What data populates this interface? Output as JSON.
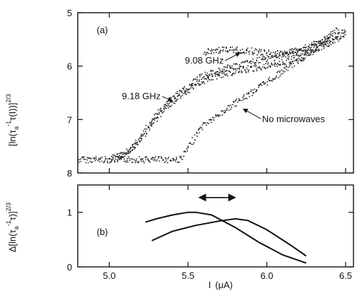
{
  "chart_data": [
    {
      "type": "scatter",
      "panel": "(a)",
      "ylabel_base": "[ln(τ",
      "ylabel_sub": "a",
      "ylabel_sup1": "-1",
      "ylabel_mid": "τ(I))]",
      "ylabel_sup2": "2/3",
      "y_inverted": true,
      "xlim": [
        4.8,
        6.55
      ],
      "ylim": [
        5,
        8
      ],
      "yticks": [
        "5",
        "6",
        "7",
        "8"
      ],
      "series": [
        {
          "name": "No microwaves",
          "segments": [
            {
              "x": [
                4.8,
                5.45,
                5.5,
                5.55,
                5.6,
                5.68,
                5.75,
                5.85,
                5.95,
                6.05,
                6.15,
                6.25,
                6.35,
                6.42,
                6.5
              ],
              "y": [
                7.75,
                7.75,
                7.55,
                7.3,
                7.1,
                6.95,
                6.8,
                6.6,
                6.4,
                6.2,
                6.0,
                5.8,
                5.62,
                5.45,
                5.35
              ]
            }
          ]
        },
        {
          "name": "9.08 GHz",
          "segments": [
            {
              "x": [
                5.05,
                5.18,
                5.25,
                5.32,
                5.4,
                5.5,
                5.58,
                5.68,
                5.8,
                5.95,
                6.1,
                6.25,
                6.4
              ],
              "y": [
                7.75,
                7.45,
                7.1,
                6.85,
                6.6,
                6.4,
                6.2,
                6.1,
                6.0,
                5.9,
                5.8,
                5.7,
                5.5
              ]
            },
            {
              "x": [
                5.6,
                5.7,
                5.8,
                5.9,
                6.0,
                6.1,
                6.2,
                6.3,
                6.4,
                6.45
              ],
              "y": [
                5.75,
                5.7,
                5.7,
                5.72,
                5.75,
                5.78,
                5.7,
                5.6,
                5.45,
                5.3
              ]
            }
          ]
        },
        {
          "name": "9.18 GHz",
          "segments": [
            {
              "x": [
                5.0,
                5.12,
                5.2,
                5.28,
                5.35,
                5.45,
                5.55,
                5.65,
                5.8,
                6.0,
                6.2,
                6.35,
                6.5
              ],
              "y": [
                7.75,
                7.6,
                7.35,
                7.05,
                6.8,
                6.55,
                6.35,
                6.2,
                6.1,
                6.0,
                5.85,
                5.65,
                5.4
              ]
            }
          ]
        }
      ],
      "annotations": [
        {
          "text": "9.08 GHz",
          "label_x": 5.48,
          "label_y": 5.95,
          "arrow_to": [
            5.83,
            5.75
          ]
        },
        {
          "text": "9.18 GHz",
          "label_x": 5.08,
          "label_y": 6.62,
          "arrow_to": [
            5.4,
            6.65
          ]
        },
        {
          "text": "No microwaves",
          "label_x": 5.97,
          "label_y": 7.05,
          "arrow_to": [
            5.85,
            6.8
          ]
        }
      ]
    },
    {
      "type": "line",
      "panel": "(b)",
      "ylabel_delta": "Δ",
      "ylabel_base": "[ln(τ",
      "ylabel_sub": "a",
      "ylabel_sup1": "-1",
      "ylabel_mid": "τ)]",
      "ylabel_sup2": "2/3",
      "xlabel_base": "I",
      "xlabel_unit": "(μA)",
      "xlim": [
        4.8,
        6.55
      ],
      "ylim": [
        0,
        1.5
      ],
      "xticks": [
        "5.0",
        "5.5",
        "6.0",
        "6.5"
      ],
      "yticks": [
        "0",
        "1"
      ],
      "series": [
        {
          "x": [
            5.23,
            5.3,
            5.4,
            5.5,
            5.55,
            5.65,
            5.8,
            5.95,
            6.1,
            6.25
          ],
          "y": [
            0.82,
            0.88,
            0.95,
            1.0,
            1.0,
            0.95,
            0.72,
            0.45,
            0.22,
            0.07
          ]
        },
        {
          "x": [
            5.27,
            5.4,
            5.55,
            5.7,
            5.8,
            5.88,
            6.0,
            6.15,
            6.25
          ],
          "y": [
            0.48,
            0.65,
            0.76,
            0.84,
            0.88,
            0.85,
            0.68,
            0.4,
            0.2
          ]
        }
      ],
      "double_arrow": {
        "x_from": 5.57,
        "x_to": 5.8,
        "y": 1.27
      }
    }
  ]
}
